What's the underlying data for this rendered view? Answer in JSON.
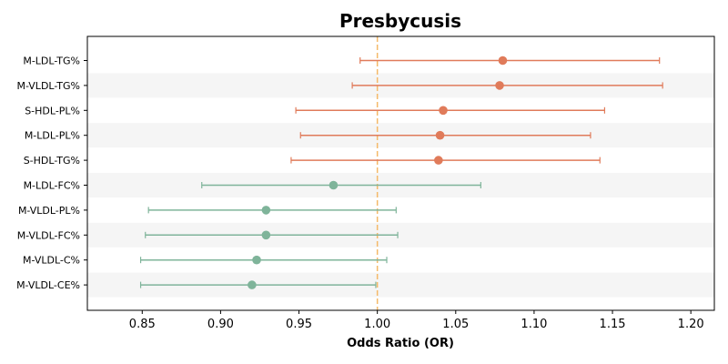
{
  "chart_data": {
    "type": "forest",
    "title": "Presbycusis",
    "xlabel": "Odds Ratio (OR)",
    "xlim": [
      0.815,
      1.215
    ],
    "xticks": [
      0.85,
      0.9,
      0.95,
      1.0,
      1.05,
      1.1,
      1.15,
      1.2
    ],
    "reference_line": 1.0,
    "colors": {
      "positive": "#e07b5a",
      "negative": "#7fb49a",
      "reference": "#f5b969",
      "band": "#f5f5f5"
    },
    "rows": [
      {
        "label": "M-LDL-TG%",
        "or": 1.08,
        "ci_low": 0.989,
        "ci_high": 1.18,
        "group": "positive"
      },
      {
        "label": "M-VLDL-TG%",
        "or": 1.078,
        "ci_low": 0.984,
        "ci_high": 1.182,
        "group": "positive"
      },
      {
        "label": "S-HDL-PL%",
        "or": 1.042,
        "ci_low": 0.948,
        "ci_high": 1.145,
        "group": "positive"
      },
      {
        "label": "M-LDL-PL%",
        "or": 1.04,
        "ci_low": 0.951,
        "ci_high": 1.136,
        "group": "positive"
      },
      {
        "label": "S-HDL-TG%",
        "or": 1.039,
        "ci_low": 0.945,
        "ci_high": 1.142,
        "group": "positive"
      },
      {
        "label": "M-LDL-FC%",
        "or": 0.972,
        "ci_low": 0.888,
        "ci_high": 1.066,
        "group": "negative"
      },
      {
        "label": "M-VLDL-PL%",
        "or": 0.929,
        "ci_low": 0.854,
        "ci_high": 1.012,
        "group": "negative"
      },
      {
        "label": "M-VLDL-FC%",
        "or": 0.929,
        "ci_low": 0.852,
        "ci_high": 1.013,
        "group": "negative"
      },
      {
        "label": "M-VLDL-C%",
        "or": 0.923,
        "ci_low": 0.849,
        "ci_high": 1.006,
        "group": "negative"
      },
      {
        "label": "M-VLDL-CE%",
        "or": 0.92,
        "ci_low": 0.849,
        "ci_high": 0.999,
        "group": "negative"
      }
    ]
  }
}
